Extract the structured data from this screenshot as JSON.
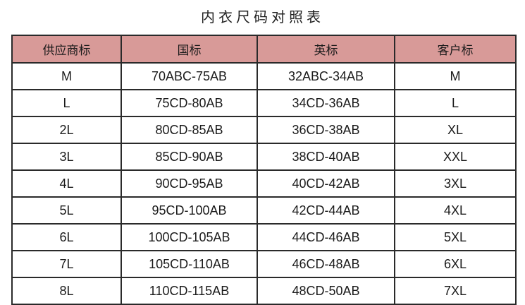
{
  "title": "内衣尺码对照表",
  "colors": {
    "header_bg": "#d89a98",
    "border": "#2a2a2a"
  },
  "table": {
    "headers": [
      "供应商标",
      "国标",
      "英标",
      "客户标"
    ],
    "rows": [
      [
        "M",
        "70ABC-75AB",
        "32ABC-34AB",
        "M"
      ],
      [
        "L",
        "75CD-80AB",
        "34CD-36AB",
        "L"
      ],
      [
        "2L",
        "80CD-85AB",
        "36CD-38AB",
        "XL"
      ],
      [
        "3L",
        "85CD-90AB",
        "38CD-40AB",
        "XXL"
      ],
      [
        "4L",
        "90CD-95AB",
        "40CD-42AB",
        "3XL"
      ],
      [
        "5L",
        "95CD-100AB",
        "42CD-44AB",
        "4XL"
      ],
      [
        "6L",
        "100CD-105AB",
        "44CD-46AB",
        "5XL"
      ],
      [
        "7L",
        "105CD-110AB",
        "46CD-48AB",
        "6XL"
      ],
      [
        "8L",
        "110CD-115AB",
        "48CD-50AB",
        "7XL"
      ]
    ]
  }
}
